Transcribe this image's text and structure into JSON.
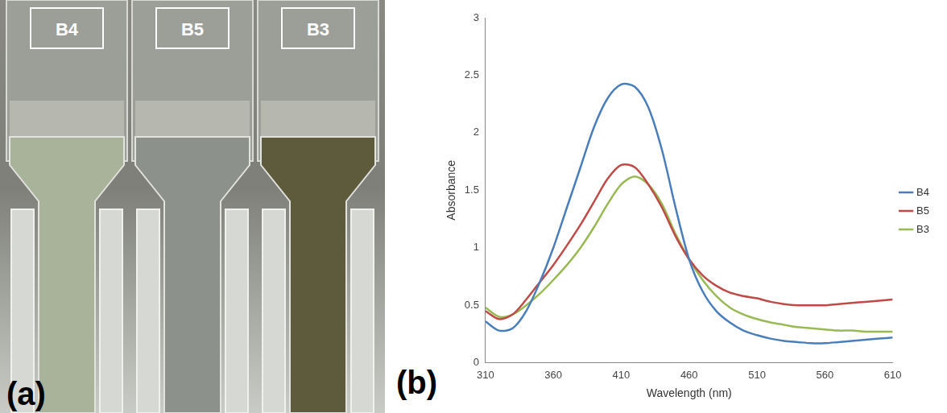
{
  "photo_panel": {
    "panel_label": "(a)",
    "cuvettes": [
      "B4",
      "B5",
      "B3"
    ]
  },
  "chart_data": {
    "type": "line",
    "panel_label": "(b)",
    "x_label": "Wavelength (nm)",
    "y_label": "Absorbance",
    "x": [
      310,
      320,
      330,
      340,
      350,
      360,
      370,
      380,
      390,
      400,
      410,
      420,
      430,
      440,
      450,
      460,
      470,
      480,
      490,
      500,
      510,
      520,
      530,
      540,
      550,
      560,
      570,
      580,
      590,
      600,
      610
    ],
    "series": [
      {
        "name": "B4",
        "color": "#4a7ebb",
        "values": [
          0.36,
          0.28,
          0.3,
          0.45,
          0.7,
          1.0,
          1.35,
          1.7,
          2.05,
          2.3,
          2.42,
          2.4,
          2.22,
          1.85,
          1.35,
          0.9,
          0.62,
          0.45,
          0.35,
          0.28,
          0.24,
          0.21,
          0.19,
          0.18,
          0.17,
          0.17,
          0.18,
          0.19,
          0.2,
          0.21,
          0.22
        ]
      },
      {
        "name": "B5",
        "color": "#be4b48",
        "values": [
          0.45,
          0.38,
          0.42,
          0.55,
          0.7,
          0.85,
          1.02,
          1.2,
          1.4,
          1.6,
          1.72,
          1.7,
          1.55,
          1.35,
          1.1,
          0.9,
          0.76,
          0.67,
          0.61,
          0.58,
          0.56,
          0.53,
          0.51,
          0.5,
          0.5,
          0.5,
          0.51,
          0.52,
          0.53,
          0.54,
          0.55
        ]
      },
      {
        "name": "B3",
        "color": "#98b954",
        "values": [
          0.48,
          0.4,
          0.42,
          0.5,
          0.6,
          0.72,
          0.85,
          1.0,
          1.18,
          1.38,
          1.55,
          1.62,
          1.55,
          1.38,
          1.12,
          0.9,
          0.72,
          0.58,
          0.48,
          0.42,
          0.38,
          0.35,
          0.33,
          0.31,
          0.3,
          0.29,
          0.28,
          0.28,
          0.27,
          0.27,
          0.27
        ]
      }
    ],
    "xlim": [
      310,
      610
    ],
    "xticks": [
      310,
      360,
      410,
      460,
      510,
      560,
      610
    ],
    "ylim": [
      0,
      3
    ],
    "yticks": [
      0,
      0.5,
      1,
      1.5,
      2,
      2.5,
      3
    ],
    "grid": false,
    "legend": "right",
    "marker": "none"
  }
}
